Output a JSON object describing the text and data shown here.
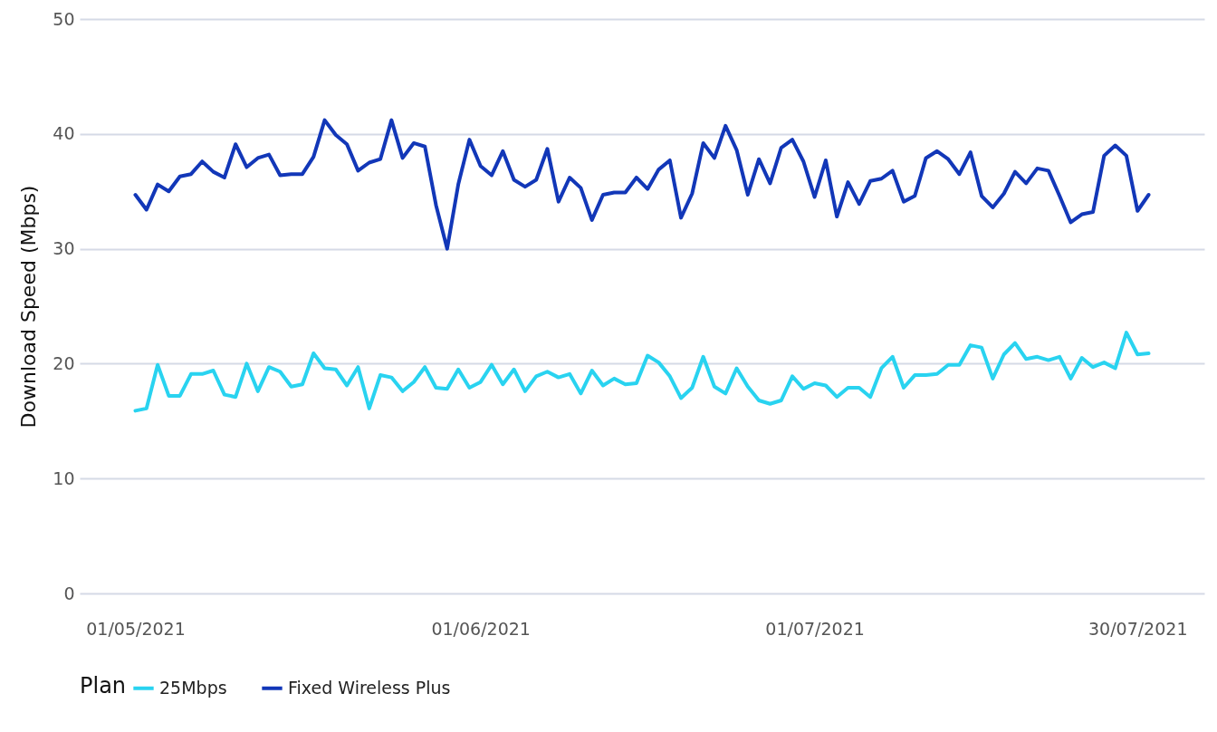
{
  "chart_data": {
    "type": "line",
    "ylabel": "Download Speed (Mbps)",
    "legend_title": "Plan",
    "x": [
      "2021-05-01",
      "2021-05-02",
      "2021-05-03",
      "2021-05-04",
      "2021-05-05",
      "2021-05-06",
      "2021-05-07",
      "2021-05-08",
      "2021-05-09",
      "2021-05-10",
      "2021-05-11",
      "2021-05-12",
      "2021-05-13",
      "2021-05-14",
      "2021-05-15",
      "2021-05-16",
      "2021-05-17",
      "2021-05-18",
      "2021-05-19",
      "2021-05-20",
      "2021-05-21",
      "2021-05-22",
      "2021-05-23",
      "2021-05-24",
      "2021-05-25",
      "2021-05-26",
      "2021-05-27",
      "2021-05-28",
      "2021-05-29",
      "2021-05-30",
      "2021-05-31",
      "2021-06-01",
      "2021-06-02",
      "2021-06-03",
      "2021-06-04",
      "2021-06-05",
      "2021-06-06",
      "2021-06-07",
      "2021-06-08",
      "2021-06-09",
      "2021-06-10",
      "2021-06-11",
      "2021-06-12",
      "2021-06-13",
      "2021-06-14",
      "2021-06-15",
      "2021-06-16",
      "2021-06-17",
      "2021-06-18",
      "2021-06-19",
      "2021-06-20",
      "2021-06-21",
      "2021-06-22",
      "2021-06-23",
      "2021-06-24",
      "2021-06-25",
      "2021-06-26",
      "2021-06-27",
      "2021-06-28",
      "2021-06-29",
      "2021-06-30",
      "2021-07-01",
      "2021-07-02",
      "2021-07-03",
      "2021-07-04",
      "2021-07-05",
      "2021-07-06",
      "2021-07-07",
      "2021-07-08",
      "2021-07-09",
      "2021-07-10",
      "2021-07-11",
      "2021-07-12",
      "2021-07-13",
      "2021-07-14",
      "2021-07-15",
      "2021-07-16",
      "2021-07-17",
      "2021-07-18",
      "2021-07-19",
      "2021-07-20",
      "2021-07-21",
      "2021-07-22",
      "2021-07-23",
      "2021-07-24",
      "2021-07-25",
      "2021-07-26",
      "2021-07-27",
      "2021-07-28",
      "2021-07-29",
      "2021-07-30",
      "2021-07-31"
    ],
    "series": [
      {
        "name": "25Mbps",
        "color": "#29d3f0",
        "values": [
          15.9,
          16.1,
          19.9,
          17.2,
          17.2,
          19.1,
          19.1,
          19.4,
          17.3,
          17.1,
          20.0,
          17.6,
          19.7,
          19.3,
          18.0,
          18.2,
          20.9,
          19.6,
          19.5,
          18.1,
          19.7,
          16.1,
          19.0,
          18.8,
          17.6,
          18.4,
          19.7,
          17.9,
          17.8,
          19.5,
          17.9,
          18.4,
          19.9,
          18.2,
          19.5,
          17.6,
          18.9,
          19.3,
          18.8,
          19.1,
          17.4,
          19.4,
          18.1,
          18.7,
          18.2,
          18.3,
          20.7,
          20.1,
          18.9,
          17.0,
          17.9,
          20.6,
          18.0,
          17.4,
          19.6,
          18.0,
          16.8,
          16.5,
          16.8,
          18.9,
          17.8,
          18.3,
          18.1,
          17.1,
          17.9,
          17.9,
          17.1,
          19.6,
          20.6,
          17.9,
          19.0,
          19.0,
          19.1,
          19.9,
          19.9,
          21.6,
          21.4,
          18.7,
          20.8,
          21.8,
          20.4,
          20.6,
          20.3,
          20.6,
          18.7,
          20.5,
          19.7,
          20.1,
          19.6,
          22.7,
          20.8,
          20.9
        ]
      },
      {
        "name": "Fixed Wireless Plus",
        "color": "#1237b8",
        "values": [
          34.7,
          33.4,
          35.6,
          35.0,
          36.3,
          36.5,
          37.6,
          36.7,
          36.2,
          39.1,
          37.1,
          37.9,
          38.2,
          36.4,
          36.5,
          36.5,
          38.0,
          41.2,
          39.9,
          39.1,
          36.8,
          37.5,
          37.8,
          41.2,
          37.9,
          39.2,
          38.9,
          33.8,
          30.0,
          35.6,
          39.5,
          37.2,
          36.4,
          38.5,
          36.0,
          35.4,
          36.0,
          38.7,
          34.1,
          36.2,
          35.3,
          32.5,
          34.7,
          34.9,
          34.9,
          36.2,
          35.2,
          36.9,
          37.7,
          32.7,
          34.8,
          39.2,
          37.9,
          40.7,
          38.6,
          34.7,
          37.8,
          35.7,
          38.8,
          39.5,
          37.6,
          34.5,
          37.7,
          32.8,
          35.8,
          33.9,
          35.9,
          36.1,
          36.8,
          34.1,
          34.6,
          37.9,
          38.5,
          37.8,
          36.5,
          38.4,
          34.6,
          33.6,
          34.8,
          36.7,
          35.7,
          37.0,
          36.8,
          34.6,
          32.3,
          33.0,
          33.2,
          38.1,
          39.0,
          38.1,
          33.3,
          34.7
        ]
      }
    ],
    "xlim": [
      "2021-04-26",
      "2021-08-05"
    ],
    "xticks": [
      {
        "value": "2021-05-01",
        "label": "01/05/2021"
      },
      {
        "value": "2021-06-01",
        "label": "01/06/2021"
      },
      {
        "value": "2021-07-01",
        "label": "01/07/2021"
      },
      {
        "value": "2021-07-30",
        "label": "30/07/2021"
      }
    ],
    "ylim": [
      0,
      50
    ],
    "yticks": [
      0,
      10,
      20,
      30,
      40,
      50
    ],
    "grid": "y",
    "legend": "bottom",
    "line_style": "solid"
  }
}
